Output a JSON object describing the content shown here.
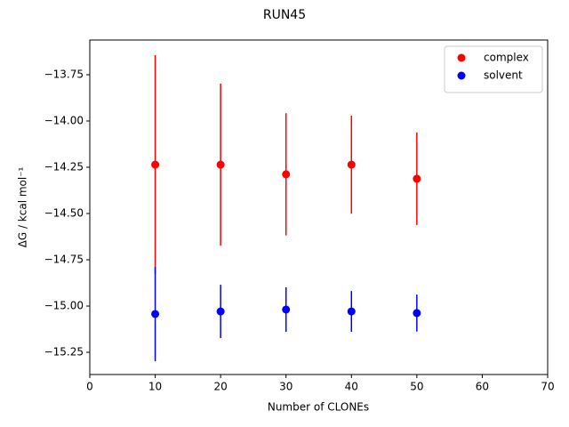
{
  "chart_data": {
    "type": "scatter",
    "title": "RUN45",
    "x_label": "Number of CLONEs",
    "y_label": "ΔG / kcal mol⁻¹",
    "x": [
      10,
      20,
      30,
      40,
      50
    ],
    "series": [
      {
        "name": "complex",
        "color": "#ff0000",
        "values": [
          -14.236,
          -14.236,
          -14.288,
          -14.236,
          -14.312
        ],
        "errors": [
          0.592,
          0.438,
          0.33,
          0.265,
          0.25
        ]
      },
      {
        "name": "solvent",
        "color": "#0000ff",
        "values": [
          -15.043,
          -15.029,
          -15.019,
          -15.029,
          -15.038
        ],
        "errors": [
          0.255,
          0.144,
          0.12,
          0.11,
          0.1
        ]
      }
    ],
    "xlim": [
      0,
      70
    ],
    "xticks": [
      0,
      10,
      20,
      30,
      40,
      50,
      60,
      70
    ],
    "ylim": [
      -15.37,
      -13.5625
    ],
    "yticks": [
      {
        "value": -15.25,
        "label": "−15.25"
      },
      {
        "value": -15,
        "label": "−15.00"
      },
      {
        "value": -14.75,
        "label": "−14.75"
      },
      {
        "value": -14.5,
        "label": "−14.50"
      },
      {
        "value": -14.25,
        "label": "−14.25"
      },
      {
        "value": -14,
        "label": "−14.00"
      },
      {
        "value": -13.75,
        "label": "−13.75"
      }
    ],
    "legend": "upper right",
    "grid": false
  }
}
